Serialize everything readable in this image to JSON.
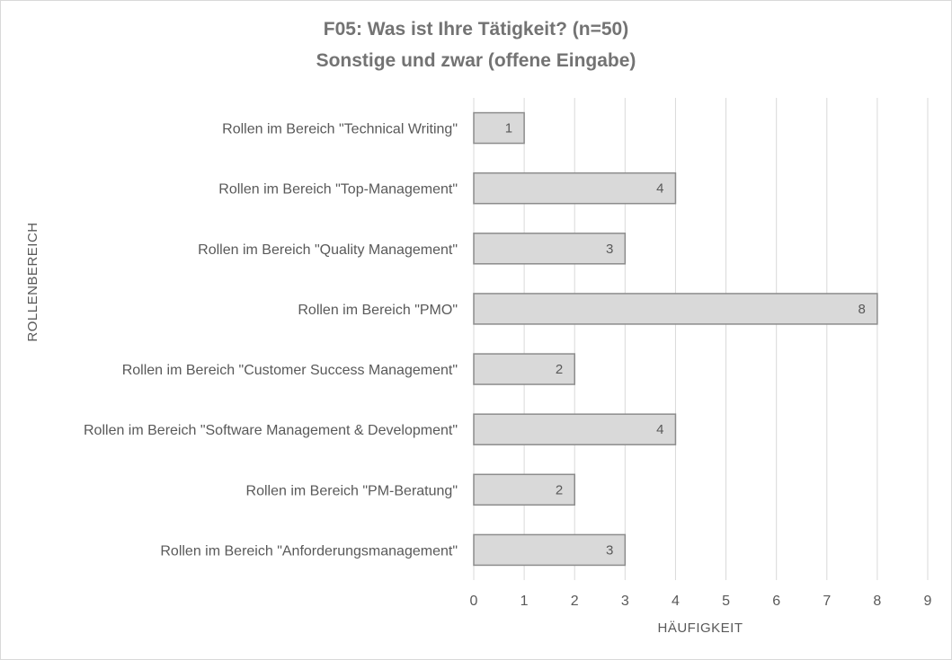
{
  "chart_data": {
    "type": "bar",
    "orientation": "horizontal",
    "title": "F05: Was ist Ihre Tätigkeit? (n=50)",
    "subtitle": "Sonstige und zwar (offene Eingabe)",
    "xlabel": "HÄUFIGKEIT",
    "ylabel": "ROLLENBEREICH",
    "xlim": [
      0,
      9
    ],
    "xticks": [
      "0",
      "1",
      "2",
      "3",
      "4",
      "5",
      "6",
      "7",
      "8",
      "9"
    ],
    "categories": [
      "Rollen im Bereich \"Technical Writing\"",
      "Rollen im Bereich \"Top-Management\"",
      "Rollen im Bereich \"Quality Management\"",
      "Rollen im Bereich \"PMO\"",
      "Rollen im Bereich \"Customer Success Management\"",
      "Rollen im Bereich \"Software Management & Development\"",
      "Rollen im Bereich \"PM-Beratung\"",
      "Rollen im Bereich \"Anforderungsmanagement\""
    ],
    "values": [
      1,
      4,
      3,
      8,
      2,
      4,
      2,
      3
    ],
    "grid": "vertical",
    "legend": "none",
    "colors": {
      "bar_fill": "#d9d9d9",
      "bar_stroke": "#8c8c8c",
      "grid": "#d9d9d9",
      "text": "#595959",
      "title": "#737373"
    }
  }
}
